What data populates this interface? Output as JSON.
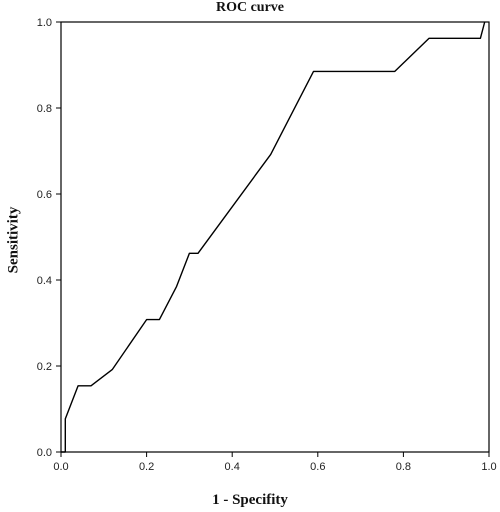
{
  "chart_data": {
    "type": "line",
    "title": "ROC curve",
    "xlabel": "1 - Specifity",
    "ylabel": "Sensitivity",
    "xlim": [
      0,
      1
    ],
    "ylim": [
      0,
      1
    ],
    "xticks": [
      "0.0",
      "0.2",
      "0.4",
      "0.6",
      "0.8",
      "1.0"
    ],
    "yticks": [
      "0.0",
      "0.2",
      "0.4",
      "0.6",
      "0.8",
      "1.0"
    ],
    "grid": false,
    "line_color": "#000000",
    "series": [
      {
        "x": [
          0.0,
          0.0,
          0.0,
          0.0,
          0.01,
          0.01,
          0.04,
          0.07,
          0.12,
          0.2,
          0.23,
          0.27,
          0.3,
          0.32,
          0.49,
          0.59,
          0.78,
          0.86,
          0.96,
          0.98,
          0.98,
          0.99
        ],
        "y": [
          0.0,
          0.0,
          0.0,
          0.0,
          0.0,
          0.077,
          0.154,
          0.154,
          0.192,
          0.308,
          0.308,
          0.385,
          0.462,
          0.462,
          0.692,
          0.885,
          0.885,
          0.962,
          0.962,
          0.962,
          0.962,
          1.0
        ]
      }
    ]
  }
}
